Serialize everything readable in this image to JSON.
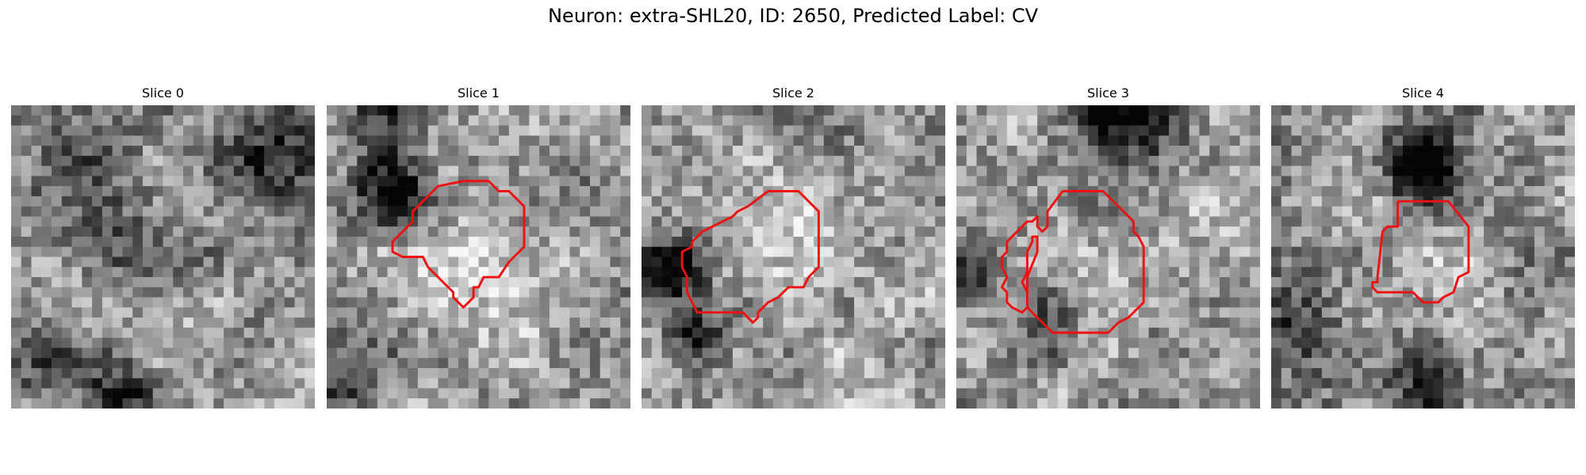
{
  "figure": {
    "title": "Neuron: extra-SHL20, ID: 2650, Predicted Label: CV",
    "contour_color": "#ee1111"
  },
  "panels": [
    {
      "title": "Slice 0",
      "texture_seed": 11,
      "blobs": [
        [
          0.85,
          0.15,
          0.18,
          0.45
        ],
        [
          0.2,
          0.3,
          0.25,
          0.25
        ],
        [
          0.35,
          0.98,
          0.12,
          0.6
        ],
        [
          0.05,
          0.85,
          0.15,
          0.35
        ],
        [
          0.5,
          0.55,
          0.15,
          0.2
        ]
      ],
      "contour": []
    },
    {
      "title": "Slice 1",
      "texture_seed": 23,
      "blobs": [
        [
          0.22,
          0.28,
          0.12,
          0.6
        ],
        [
          0.2,
          0.02,
          0.12,
          0.4
        ],
        [
          0.05,
          0.9,
          0.15,
          0.4
        ],
        [
          0.55,
          0.55,
          0.2,
          -0.15
        ]
      ],
      "contour": [
        [
          13.5,
          7.5
        ],
        [
          16,
          7.5
        ],
        [
          17,
          8.5
        ],
        [
          18,
          8.5
        ],
        [
          19.5,
          10
        ],
        [
          19.5,
          14
        ],
        [
          18,
          15.5
        ],
        [
          17,
          17
        ],
        [
          15.5,
          17
        ],
        [
          15,
          18
        ],
        [
          14.5,
          18
        ],
        [
          14.5,
          19
        ],
        [
          13.5,
          20
        ],
        [
          13,
          19.5
        ],
        [
          12.5,
          19
        ],
        [
          12.5,
          18.5
        ],
        [
          10.5,
          16.5
        ],
        [
          10,
          16
        ],
        [
          9.5,
          15
        ],
        [
          7.5,
          15
        ],
        [
          6.5,
          14.5
        ],
        [
          6.5,
          13.5
        ],
        [
          8.5,
          11.5
        ],
        [
          8.5,
          10.5
        ],
        [
          9.5,
          9.5
        ],
        [
          11,
          8
        ],
        [
          13.5,
          7.5
        ]
      ]
    },
    {
      "title": "Slice 2",
      "texture_seed": 37,
      "blobs": [
        [
          0.1,
          0.55,
          0.12,
          0.6
        ],
        [
          0.18,
          0.75,
          0.1,
          0.5
        ],
        [
          0.55,
          0.5,
          0.2,
          -0.15
        ]
      ],
      "contour": [
        [
          12.5,
          8.5
        ],
        [
          15.5,
          8.5
        ],
        [
          17.5,
          10.5
        ],
        [
          17.5,
          16
        ],
        [
          16.5,
          17
        ],
        [
          16,
          18
        ],
        [
          14.5,
          18
        ],
        [
          13.5,
          19
        ],
        [
          12.5,
          19.5
        ],
        [
          11.5,
          20.5
        ],
        [
          11.5,
          21
        ],
        [
          11,
          21.5
        ],
        [
          10.5,
          21
        ],
        [
          10,
          20.5
        ],
        [
          5.5,
          20.5
        ],
        [
          5,
          19.5
        ],
        [
          4.5,
          18.5
        ],
        [
          4.5,
          17
        ],
        [
          4,
          16
        ],
        [
          4,
          14.5
        ],
        [
          5,
          14
        ],
        [
          5,
          13.5
        ],
        [
          6,
          12.5
        ],
        [
          7,
          12
        ],
        [
          8,
          11.5
        ],
        [
          9,
          11
        ],
        [
          9.5,
          10.5
        ],
        [
          10.5,
          10
        ],
        [
          12.5,
          8.5
        ]
      ]
    },
    {
      "title": "Slice 3",
      "texture_seed": 51,
      "blobs": [
        [
          0.55,
          0.03,
          0.18,
          0.7
        ],
        [
          0.04,
          0.55,
          0.12,
          0.4
        ],
        [
          0.3,
          0.7,
          0.1,
          0.3
        ],
        [
          0.55,
          0.52,
          0.22,
          0.05
        ]
      ],
      "contour": [
        [
          10.5,
          8.5
        ],
        [
          14.5,
          8.5
        ],
        [
          17.5,
          11.5
        ],
        [
          17.5,
          12.5
        ],
        [
          18,
          13
        ],
        [
          18.5,
          14
        ],
        [
          18.5,
          19.5
        ],
        [
          17,
          21
        ],
        [
          16,
          21.5
        ],
        [
          15.5,
          22
        ],
        [
          15,
          22.5
        ],
        [
          9.5,
          22.5
        ],
        [
          8.5,
          21.5
        ],
        [
          7,
          20
        ],
        [
          7,
          18.5
        ],
        [
          7,
          17
        ],
        [
          8,
          14.5
        ],
        [
          8,
          13
        ],
        [
          7.5,
          13
        ],
        [
          7.5,
          13.5
        ],
        [
          7,
          14.5
        ],
        [
          7,
          16.5
        ],
        [
          6.5,
          17.5
        ],
        [
          7,
          18.5
        ],
        [
          7,
          20
        ],
        [
          6.5,
          20.5
        ],
        [
          5.5,
          20
        ],
        [
          5,
          19.5
        ],
        [
          5,
          18.5
        ],
        [
          4.5,
          18
        ],
        [
          5,
          17
        ],
        [
          4.5,
          16
        ],
        [
          4.5,
          15
        ],
        [
          5,
          14.5
        ],
        [
          5,
          13.5
        ],
        [
          5.5,
          13
        ],
        [
          6,
          12.5
        ],
        [
          6.5,
          12
        ],
        [
          7,
          11.5
        ],
        [
          7.5,
          11.5
        ],
        [
          8,
          11
        ],
        [
          8,
          12
        ],
        [
          8.5,
          12.5
        ],
        [
          9,
          12
        ],
        [
          9,
          10.5
        ],
        [
          10.5,
          8.5
        ]
      ]
    },
    {
      "title": "Slice 4",
      "texture_seed": 67,
      "blobs": [
        [
          0.5,
          0.2,
          0.12,
          0.8
        ],
        [
          0.05,
          0.7,
          0.15,
          0.4
        ],
        [
          0.5,
          0.95,
          0.15,
          0.3
        ]
      ],
      "contour": [
        [
          12.5,
          9.5
        ],
        [
          17.5,
          9.5
        ],
        [
          19.5,
          12
        ],
        [
          19.5,
          16.5
        ],
        [
          18.5,
          17
        ],
        [
          18,
          18.5
        ],
        [
          17,
          19
        ],
        [
          16.5,
          19.5
        ],
        [
          15,
          19.5
        ],
        [
          14.5,
          19
        ],
        [
          14,
          18.5
        ],
        [
          10.5,
          18.5
        ],
        [
          10,
          18
        ],
        [
          10,
          17.5
        ],
        [
          10.5,
          17.5
        ],
        [
          10.5,
          17
        ],
        [
          11,
          12.5
        ],
        [
          11.5,
          12
        ],
        [
          12.5,
          12
        ],
        [
          12.5,
          9.5
        ]
      ]
    }
  ]
}
